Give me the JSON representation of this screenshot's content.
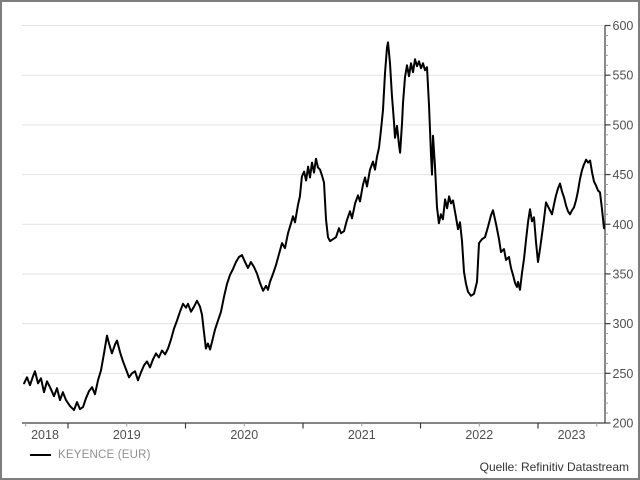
{
  "window": {
    "background": "#ffffff",
    "frame_color": "#7d7d7d"
  },
  "legend": {
    "label": "KEYENCE (EUR)",
    "line_color": "#000000"
  },
  "source": {
    "text": "Quelle: Refinitiv Datastream"
  },
  "chart_data": {
    "type": "line",
    "title": "",
    "xlabel": "",
    "ylabel": "",
    "grid": "horizontal",
    "legend_position": "bottom-left",
    "xlim": [
      2018.605,
      2023.57
    ],
    "ylim": [
      200,
      600
    ],
    "y_major_step": 50,
    "y_minor_step": 10,
    "colors": {
      "line": "#000000",
      "grid": "#e3e3e3",
      "axis": "#3c3c3c",
      "minor_tick": "#9a9a9a",
      "tick_label": "#4f4f4f"
    },
    "y_axis": {
      "side": "right",
      "ticks": [
        {
          "value": 200,
          "label": "200"
        },
        {
          "value": 250,
          "label": "250"
        },
        {
          "value": 300,
          "label": "300"
        },
        {
          "value": 350,
          "label": "350"
        },
        {
          "value": 400,
          "label": "400"
        },
        {
          "value": 450,
          "label": "450"
        },
        {
          "value": 500,
          "label": "500"
        },
        {
          "value": 550,
          "label": "550"
        },
        {
          "value": 600,
          "label": "600"
        }
      ]
    },
    "x_axis": {
      "year_boundary_ticks": [
        2019,
        2020,
        2021,
        2022,
        2023
      ],
      "mid_year_ticks": [
        2019.5,
        2020.5,
        2021.5,
        2022.5,
        2023.5
      ],
      "start_tick": 2018.64,
      "labels": [
        "2018",
        "2019",
        "2020",
        "2021",
        "2022",
        "2023"
      ]
    },
    "series": [
      {
        "name": "KEYENCE (EUR)",
        "color": "#000000",
        "points": [
          [
            2018.626,
            240
          ],
          [
            2018.651,
            246
          ],
          [
            2018.677,
            238
          ],
          [
            2018.702,
            247
          ],
          [
            2018.719,
            252
          ],
          [
            2018.745,
            240
          ],
          [
            2018.77,
            245
          ],
          [
            2018.796,
            231
          ],
          [
            2018.821,
            242
          ],
          [
            2018.847,
            236
          ],
          [
            2018.881,
            227
          ],
          [
            2018.906,
            235
          ],
          [
            2018.932,
            223
          ],
          [
            2018.957,
            231
          ],
          [
            2018.983,
            223
          ],
          [
            2019.017,
            217
          ],
          [
            2019.051,
            213
          ],
          [
            2019.077,
            221
          ],
          [
            2019.102,
            214
          ],
          [
            2019.128,
            216
          ],
          [
            2019.153,
            225
          ],
          [
            2019.179,
            232
          ],
          [
            2019.204,
            236
          ],
          [
            2019.23,
            229
          ],
          [
            2019.255,
            243
          ],
          [
            2019.281,
            253
          ],
          [
            2019.306,
            270
          ],
          [
            2019.332,
            288
          ],
          [
            2019.349,
            280
          ],
          [
            2019.374,
            270
          ],
          [
            2019.4,
            279
          ],
          [
            2019.417,
            283
          ],
          [
            2019.443,
            271
          ],
          [
            2019.468,
            262
          ],
          [
            2019.494,
            254
          ],
          [
            2019.519,
            246
          ],
          [
            2019.545,
            250
          ],
          [
            2019.57,
            252
          ],
          [
            2019.596,
            243
          ],
          [
            2019.621,
            251
          ],
          [
            2019.647,
            258
          ],
          [
            2019.672,
            262
          ],
          [
            2019.698,
            256
          ],
          [
            2019.723,
            264
          ],
          [
            2019.749,
            270
          ],
          [
            2019.774,
            266
          ],
          [
            2019.8,
            273
          ],
          [
            2019.826,
            269
          ],
          [
            2019.851,
            275
          ],
          [
            2019.877,
            284
          ],
          [
            2019.902,
            295
          ],
          [
            2019.928,
            303
          ],
          [
            2019.953,
            312
          ],
          [
            2019.979,
            320
          ],
          [
            2020.004,
            316
          ],
          [
            2020.021,
            320
          ],
          [
            2020.047,
            312
          ],
          [
            2020.072,
            317
          ],
          [
            2020.098,
            323
          ],
          [
            2020.123,
            317
          ],
          [
            2020.14,
            309
          ],
          [
            2020.157,
            292
          ],
          [
            2020.174,
            275
          ],
          [
            2020.191,
            280
          ],
          [
            2020.209,
            274
          ],
          [
            2020.226,
            282
          ],
          [
            2020.251,
            294
          ],
          [
            2020.277,
            303
          ],
          [
            2020.302,
            312
          ],
          [
            2020.328,
            327
          ],
          [
            2020.353,
            340
          ],
          [
            2020.379,
            349
          ],
          [
            2020.404,
            355
          ],
          [
            2020.43,
            362
          ],
          [
            2020.455,
            367
          ],
          [
            2020.481,
            369
          ],
          [
            2020.506,
            362
          ],
          [
            2020.532,
            356
          ],
          [
            2020.557,
            362
          ],
          [
            2020.583,
            357
          ],
          [
            2020.609,
            350
          ],
          [
            2020.634,
            341
          ],
          [
            2020.66,
            333
          ],
          [
            2020.685,
            338
          ],
          [
            2020.702,
            334
          ],
          [
            2020.719,
            342
          ],
          [
            2020.745,
            350
          ],
          [
            2020.77,
            359
          ],
          [
            2020.796,
            370
          ],
          [
            2020.821,
            381
          ],
          [
            2020.847,
            376
          ],
          [
            2020.872,
            391
          ],
          [
            2020.898,
            401
          ],
          [
            2020.915,
            408
          ],
          [
            2020.932,
            402
          ],
          [
            2020.957,
            419
          ],
          [
            2020.974,
            428
          ],
          [
            2020.991,
            448
          ],
          [
            2021.009,
            453
          ],
          [
            2021.026,
            444
          ],
          [
            2021.043,
            458
          ],
          [
            2021.06,
            447
          ],
          [
            2021.077,
            462
          ],
          [
            2021.094,
            452
          ],
          [
            2021.111,
            466
          ],
          [
            2021.128,
            457
          ],
          [
            2021.145,
            455
          ],
          [
            2021.162,
            449
          ],
          [
            2021.179,
            442
          ],
          [
            2021.196,
            405
          ],
          [
            2021.213,
            387
          ],
          [
            2021.23,
            383
          ],
          [
            2021.255,
            385
          ],
          [
            2021.281,
            387
          ],
          [
            2021.306,
            396
          ],
          [
            2021.323,
            391
          ],
          [
            2021.349,
            393
          ],
          [
            2021.374,
            404
          ],
          [
            2021.4,
            413
          ],
          [
            2021.417,
            406
          ],
          [
            2021.443,
            421
          ],
          [
            2021.468,
            429
          ],
          [
            2021.485,
            423
          ],
          [
            2021.511,
            440
          ],
          [
            2021.528,
            447
          ],
          [
            2021.545,
            438
          ],
          [
            2021.57,
            455
          ],
          [
            2021.596,
            463
          ],
          [
            2021.613,
            455
          ],
          [
            2021.63,
            468
          ],
          [
            2021.647,
            477
          ],
          [
            2021.664,
            495
          ],
          [
            2021.681,
            515
          ],
          [
            2021.698,
            552
          ],
          [
            2021.715,
            578
          ],
          [
            2021.723,
            583
          ],
          [
            2021.74,
            562
          ],
          [
            2021.757,
            530
          ],
          [
            2021.774,
            504
          ],
          [
            2021.783,
            487
          ],
          [
            2021.8,
            499
          ],
          [
            2021.817,
            480
          ],
          [
            2021.826,
            472
          ],
          [
            2021.843,
            503
          ],
          [
            2021.851,
            522
          ],
          [
            2021.868,
            548
          ],
          [
            2021.885,
            560
          ],
          [
            2021.902,
            549
          ],
          [
            2021.919,
            562
          ],
          [
            2021.936,
            553
          ],
          [
            2021.953,
            566
          ],
          [
            2021.97,
            559
          ],
          [
            2021.987,
            564
          ],
          [
            2022.004,
            557
          ],
          [
            2022.021,
            562
          ],
          [
            2022.038,
            555
          ],
          [
            2022.055,
            558
          ],
          [
            2022.072,
            520
          ],
          [
            2022.089,
            470
          ],
          [
            2022.098,
            450
          ],
          [
            2022.106,
            489
          ],
          [
            2022.123,
            458
          ],
          [
            2022.14,
            417
          ],
          [
            2022.157,
            401
          ],
          [
            2022.174,
            410
          ],
          [
            2022.191,
            405
          ],
          [
            2022.209,
            425
          ],
          [
            2022.226,
            416
          ],
          [
            2022.243,
            428
          ],
          [
            2022.26,
            421
          ],
          [
            2022.277,
            424
          ],
          [
            2022.302,
            407
          ],
          [
            2022.319,
            395
          ],
          [
            2022.336,
            402
          ],
          [
            2022.353,
            383
          ],
          [
            2022.37,
            352
          ],
          [
            2022.387,
            340
          ],
          [
            2022.404,
            332
          ],
          [
            2022.43,
            328
          ],
          [
            2022.455,
            330
          ],
          [
            2022.481,
            342
          ],
          [
            2022.498,
            381
          ],
          [
            2022.523,
            385
          ],
          [
            2022.549,
            387
          ],
          [
            2022.574,
            397
          ],
          [
            2022.6,
            409
          ],
          [
            2022.617,
            414
          ],
          [
            2022.643,
            400
          ],
          [
            2022.668,
            385
          ],
          [
            2022.685,
            372
          ],
          [
            2022.711,
            375
          ],
          [
            2022.728,
            364
          ],
          [
            2022.753,
            367
          ],
          [
            2022.77,
            356
          ],
          [
            2022.787,
            349
          ],
          [
            2022.804,
            341
          ],
          [
            2022.821,
            337
          ],
          [
            2022.83,
            342
          ],
          [
            2022.847,
            334
          ],
          [
            2022.864,
            351
          ],
          [
            2022.881,
            365
          ],
          [
            2022.898,
            384
          ],
          [
            2022.915,
            402
          ],
          [
            2022.932,
            415
          ],
          [
            2022.949,
            403
          ],
          [
            2022.966,
            407
          ],
          [
            2022.983,
            382
          ],
          [
            2023.0,
            362
          ],
          [
            2023.017,
            375
          ],
          [
            2023.034,
            390
          ],
          [
            2023.051,
            405
          ],
          [
            2023.068,
            422
          ],
          [
            2023.085,
            418
          ],
          [
            2023.102,
            414
          ],
          [
            2023.119,
            410
          ],
          [
            2023.136,
            420
          ],
          [
            2023.153,
            429
          ],
          [
            2023.17,
            436
          ],
          [
            2023.187,
            441
          ],
          [
            2023.204,
            433
          ],
          [
            2023.221,
            427
          ],
          [
            2023.238,
            419
          ],
          [
            2023.255,
            413
          ],
          [
            2023.272,
            410
          ],
          [
            2023.289,
            414
          ],
          [
            2023.306,
            417
          ],
          [
            2023.323,
            424
          ],
          [
            2023.34,
            433
          ],
          [
            2023.357,
            445
          ],
          [
            2023.374,
            454
          ],
          [
            2023.391,
            460
          ],
          [
            2023.409,
            465
          ],
          [
            2023.426,
            462
          ],
          [
            2023.443,
            464
          ],
          [
            2023.46,
            452
          ],
          [
            2023.477,
            443
          ],
          [
            2023.494,
            439
          ],
          [
            2023.511,
            434
          ],
          [
            2023.528,
            432
          ],
          [
            2023.545,
            415
          ],
          [
            2023.562,
            396
          ]
        ]
      }
    ]
  }
}
